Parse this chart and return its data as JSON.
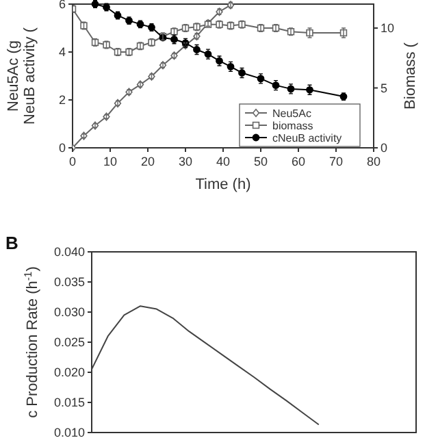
{
  "chart_data": [
    {
      "type": "line",
      "xlabel": "Time (h)",
      "ylabel": "Neu5Ac (g\nNeuB activity (",
      "y2label": "Biomass (",
      "xlim": [
        0,
        80
      ],
      "xticks": [
        0,
        10,
        20,
        30,
        40,
        50,
        60,
        70,
        80
      ],
      "ylim": [
        0,
        6
      ],
      "yticks": [
        0,
        2,
        4,
        6
      ],
      "y2lim": [
        0,
        12
      ],
      "y2ticks": [
        0,
        5,
        10
      ],
      "legend": "bottom right",
      "series": [
        {
          "name": "Neu5Ac",
          "color": "#666666",
          "marker": "diamond",
          "x": [
            0,
            3,
            6,
            9,
            12,
            15,
            18,
            21,
            24,
            27,
            30,
            33,
            36,
            39,
            42
          ],
          "values": [
            0,
            0.5,
            0.93,
            1.3,
            1.86,
            2.33,
            2.64,
            2.98,
            3.45,
            3.85,
            4.28,
            4.66,
            5.2,
            5.68,
            5.96
          ],
          "errors": [
            null,
            0.08,
            0.08,
            0.08,
            0.1,
            0.1,
            0.1,
            0.1,
            0.1,
            0.1,
            0.1,
            0.12,
            0.12,
            0.12,
            0.12
          ]
        },
        {
          "name": "biomass",
          "color": "#666666",
          "marker": "square",
          "axis": "y2",
          "x": [
            0,
            3,
            6,
            9,
            12,
            15,
            18,
            21,
            24,
            27,
            30,
            33,
            36,
            39,
            42,
            45,
            50,
            54,
            58,
            63,
            72
          ],
          "values": [
            11.6,
            10.2,
            8.8,
            8.6,
            8.0,
            8.0,
            8.5,
            8.8,
            9.3,
            9.7,
            10.0,
            10.1,
            10.3,
            10.3,
            10.2,
            10.3,
            10.0,
            10.0,
            9.7,
            9.6,
            9.6
          ],
          "errors": [
            0.3,
            0.3,
            0.3,
            0.3,
            0.3,
            0.3,
            0.3,
            0.3,
            0.3,
            0.3,
            0.3,
            0.3,
            null,
            0.3,
            0.3,
            0.3,
            0.3,
            0.3,
            0.3,
            0.4,
            0.4
          ]
        },
        {
          "name": "cNeuB activity",
          "color": "#000000",
          "marker": "circle",
          "x": [
            6,
            9,
            12,
            15,
            18,
            21,
            24,
            27,
            30,
            33,
            36,
            39,
            42,
            45,
            50,
            54,
            58,
            63,
            72
          ],
          "values": [
            6.0,
            5.87,
            5.53,
            5.31,
            5.16,
            5.03,
            4.6,
            4.53,
            4.38,
            4.1,
            3.91,
            3.63,
            3.39,
            3.13,
            2.89,
            2.61,
            2.46,
            2.42,
            2.14
          ],
          "errors": [
            0.15,
            0.15,
            0.15,
            0.15,
            0.15,
            0.15,
            null,
            0.18,
            0.18,
            0.2,
            0.2,
            0.2,
            0.2,
            0.2,
            0.2,
            0.2,
            0.2,
            0.2,
            0.15
          ]
        }
      ]
    },
    {
      "type": "line",
      "title": "B",
      "ylabel": "c Production Rate (h$^{-1}$)",
      "tick_labels": "y",
      "categories": [
        null,
        null,
        null,
        null,
        null,
        null,
        null,
        null,
        null,
        null,
        null,
        null,
        null,
        null,
        null,
        null,
        null,
        null,
        null,
        null,
        null
      ],
      "ylim": [
        0.01,
        0.04
      ],
      "yticks": [
        {
          "value": 0.01,
          "label": "0.010"
        },
        {
          "value": 0.015,
          "label": "0.015"
        },
        {
          "value": 0.02,
          "label": "0.020"
        },
        {
          "value": 0.025,
          "label": "0.025"
        },
        {
          "value": 0.03,
          "label": "0.030"
        },
        {
          "value": 0.035,
          "label": "0.035"
        },
        {
          "value": 0.04,
          "label": "0.040"
        }
      ],
      "series": [
        {
          "color": "#444444",
          "values": [
            0.0205,
            0.026,
            0.0295,
            0.031,
            0.0305,
            0.029,
            0.0268,
            0.0249,
            0.023,
            0.0211,
            0.0192,
            0.0172,
            0.0153,
            0.0133,
            0.0113,
            null,
            null,
            null,
            null,
            null,
            null
          ]
        }
      ]
    }
  ]
}
